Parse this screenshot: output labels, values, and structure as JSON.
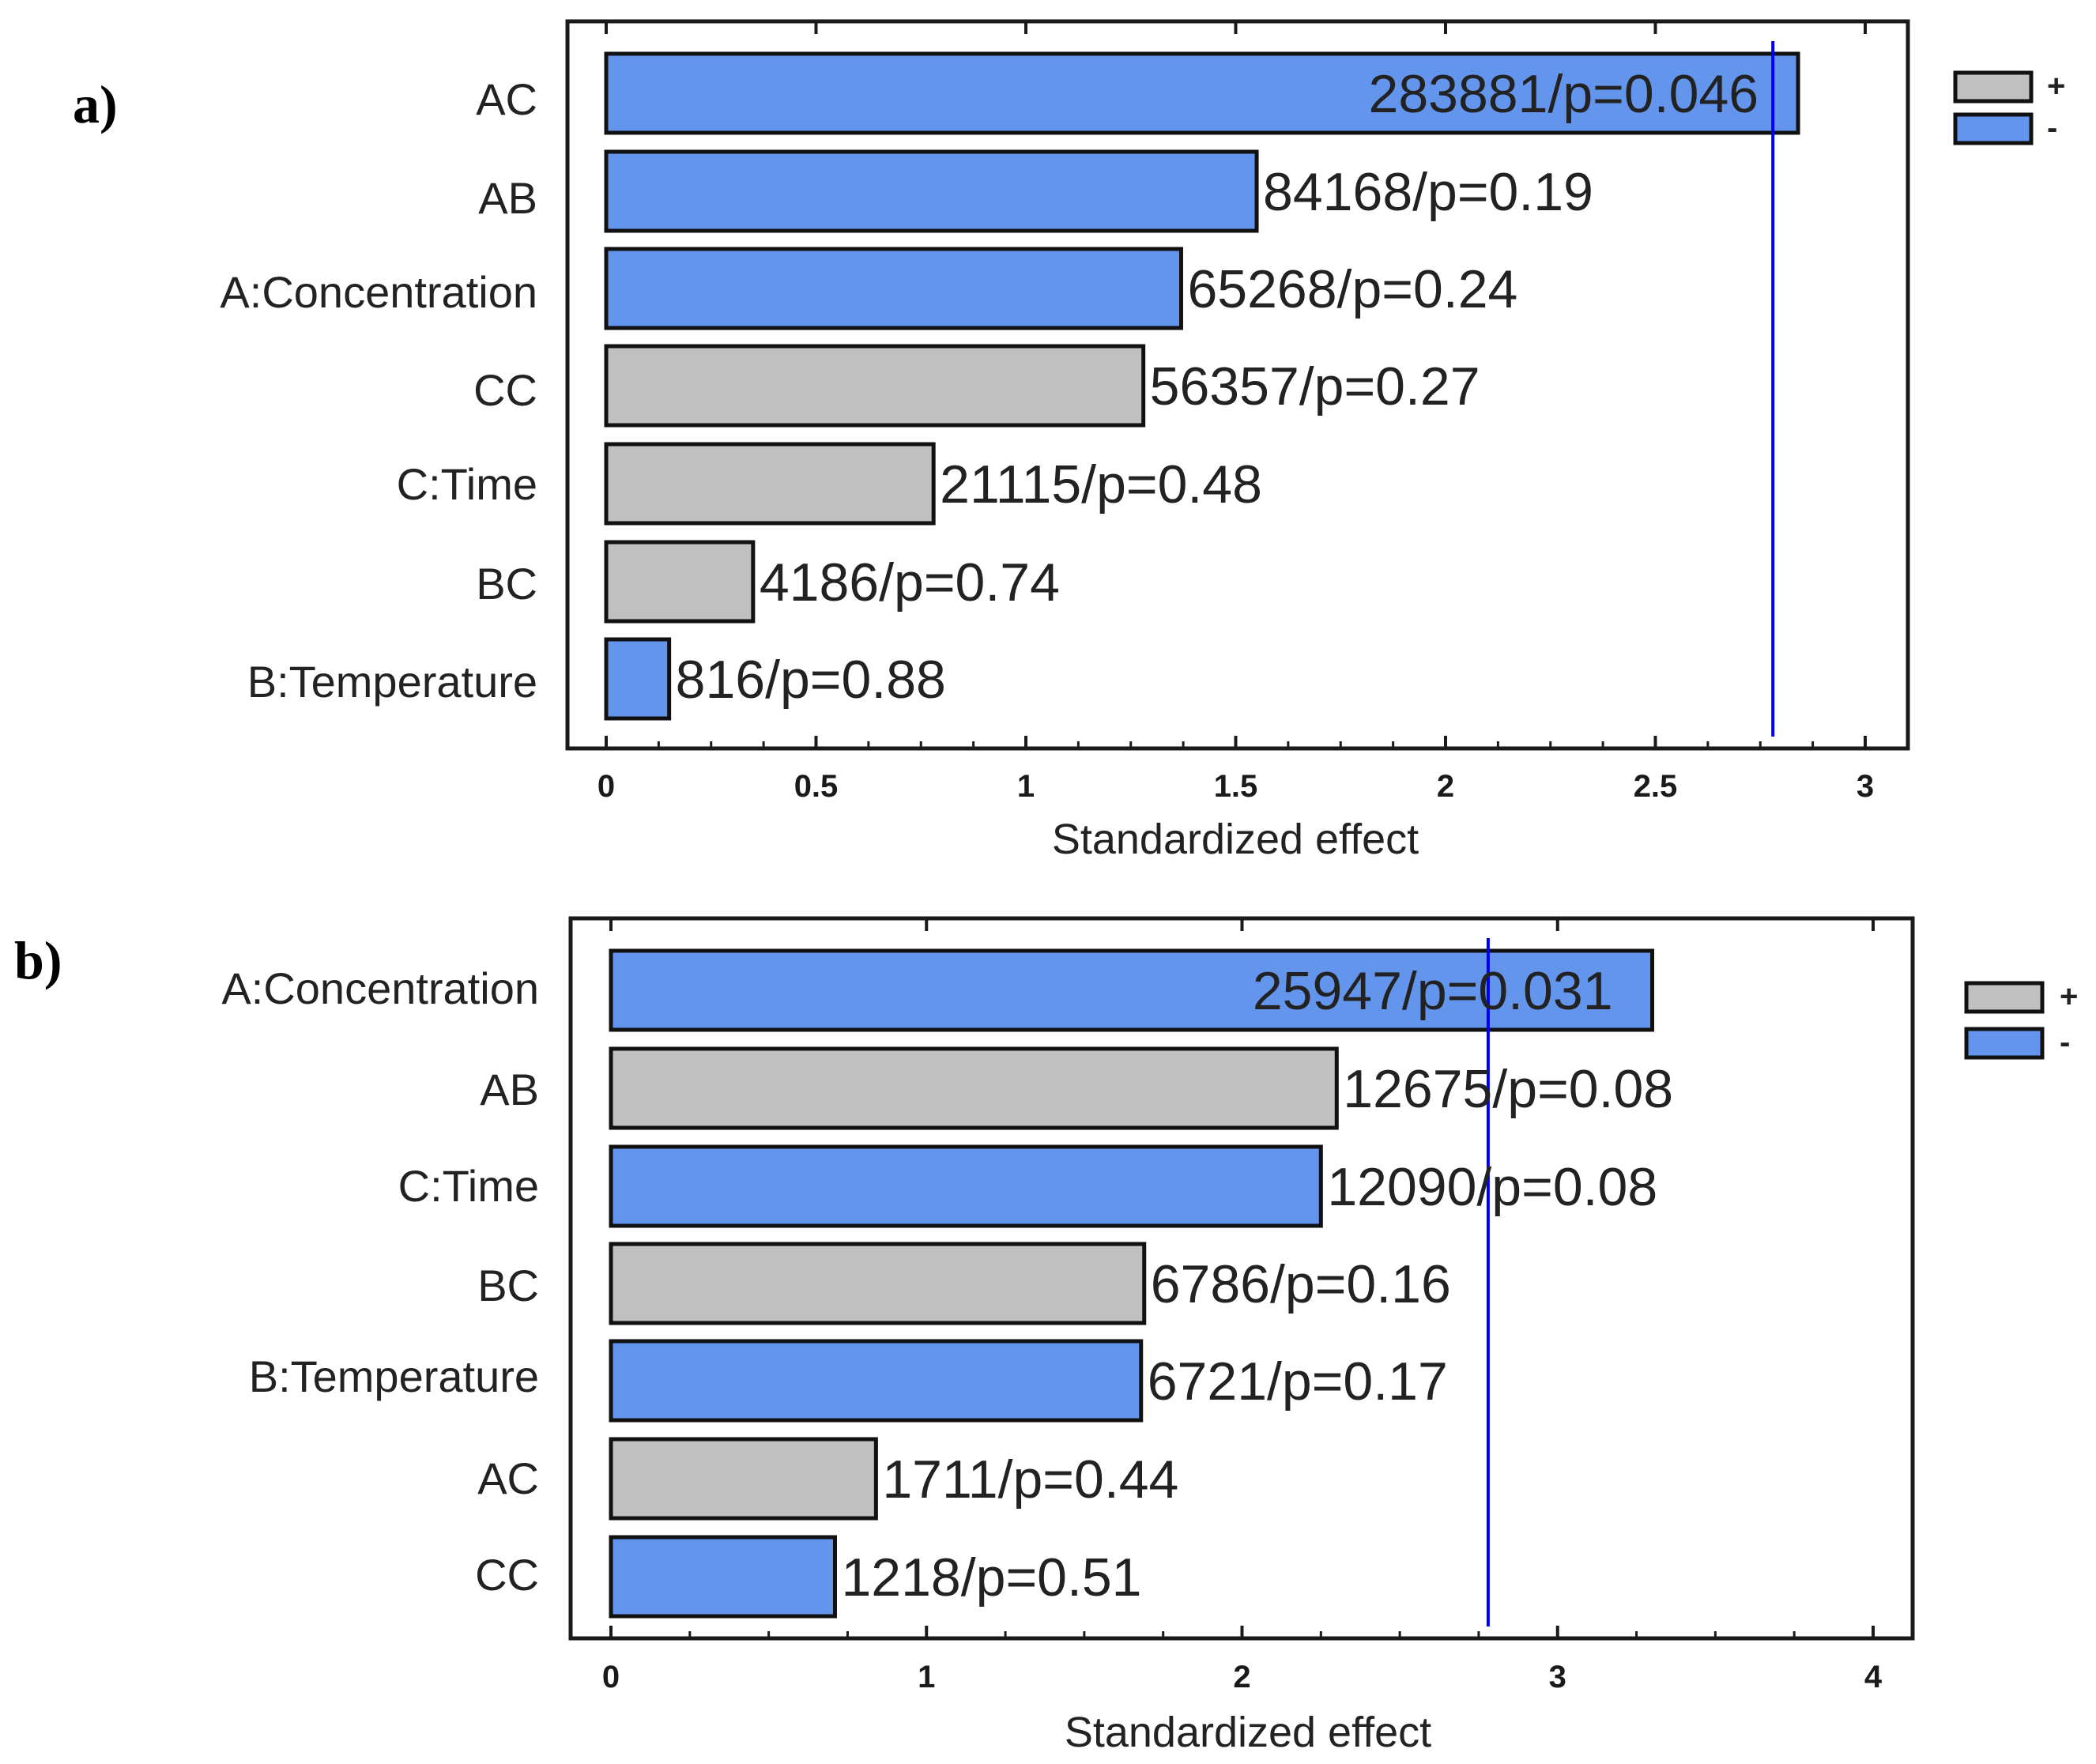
{
  "colors": {
    "positive": "#c0c0c0",
    "negative": "#6495ed",
    "threshold": "#0000ee",
    "frame": "#1a1a1a"
  },
  "chart_data": [
    {
      "type": "bar",
      "orientation": "horizontal",
      "panel_label": "a)",
      "xlabel": "Standardized effect",
      "xlim": [
        0,
        3
      ],
      "ticks": [
        0,
        0.5,
        1,
        1.5,
        2,
        2.5,
        3
      ],
      "tick_labels": [
        "0",
        "0.5",
        "1",
        "1.5",
        "2",
        "2.5",
        "3"
      ],
      "threshold": 2.78,
      "legend": [
        {
          "label": "+",
          "sign": "positive"
        },
        {
          "label": "-",
          "sign": "negative"
        }
      ],
      "categories": [
        "AC",
        "AB",
        "A:Concentration",
        "CC",
        "C:Time",
        "BC",
        "B:Temperature"
      ],
      "values": [
        2.84,
        1.55,
        1.37,
        1.28,
        0.78,
        0.35,
        0.15
      ],
      "signs": [
        "negative",
        "negative",
        "negative",
        "positive",
        "positive",
        "positive",
        "negative"
      ],
      "labels": [
        "283881/p=0.046",
        "84168/p=0.19",
        "65268/p=0.24",
        "56357/p=0.27",
        "21115/p=0.48",
        "4186/p=0.74",
        "816/p=0.88"
      ]
    },
    {
      "type": "bar",
      "orientation": "horizontal",
      "panel_label": "b)",
      "xlabel": "Standardized effect",
      "xlim": [
        0,
        4
      ],
      "ticks": [
        0,
        1,
        2,
        3,
        4
      ],
      "tick_labels": [
        "0",
        "1",
        "2",
        "3",
        "4"
      ],
      "threshold": 2.78,
      "legend": [
        {
          "label": "+",
          "sign": "positive"
        },
        {
          "label": "-",
          "sign": "negative"
        }
      ],
      "categories": [
        "A:Concentration",
        "AB",
        "C:Time",
        "BC",
        "B:Temperature",
        "AC",
        "CC"
      ],
      "values": [
        3.3,
        2.3,
        2.25,
        1.69,
        1.68,
        0.84,
        0.71
      ],
      "signs": [
        "negative",
        "positive",
        "negative",
        "positive",
        "negative",
        "positive",
        "negative"
      ],
      "labels": [
        "25947/p=0.031",
        "12675/p=0.08",
        "12090/p=0.08",
        "6786/p=0.16",
        "6721/p=0.17",
        "1711/p=0.44",
        "1218/p=0.51"
      ]
    }
  ]
}
